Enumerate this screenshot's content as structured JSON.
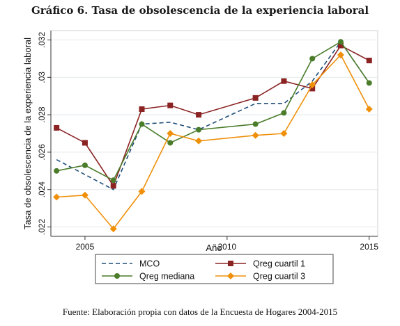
{
  "title": "Gráfico 6. Tasa de obsolescencia de la experiencia laboral",
  "source": "Fuente: Elaboración propia con datos de la Encuesta de Hogares 2004-2015",
  "chart_data": {
    "type": "line",
    "xlabel": "Año",
    "ylabel": "Tasa de obsolescencia de la experiencia laboral",
    "xlim": [
      2003.8,
      2015.3
    ],
    "ylim": [
      0.0215,
      0.0325
    ],
    "x_ticks": [
      2005,
      2010,
      2015
    ],
    "x_tick_labels": [
      "2005",
      "2010",
      "2015"
    ],
    "y_ticks": [
      0.022,
      0.024,
      0.026,
      0.028,
      0.03,
      0.032
    ],
    "y_tick_labels": [
      ".022",
      ".024",
      ".026",
      ".028",
      ".03",
      ".032"
    ],
    "grid": true,
    "legend_position": "bottom",
    "series": [
      {
        "name": "MCO",
        "color": "#1f4e79",
        "style": "dashed",
        "marker": "none",
        "x": [
          2004,
          2005,
          2006,
          2007,
          2008,
          2009,
          2010,
          2011,
          2012,
          2013,
          2014,
          2015
        ],
        "y": [
          0.0256,
          0.0248,
          0.024,
          0.0275,
          0.0276,
          0.0272,
          0.0279,
          0.0286,
          0.0286,
          0.0298,
          0.0319,
          0.0297
        ]
      },
      {
        "name": "Qreg cuartil 1",
        "color": "#8b2323",
        "style": "solid",
        "marker": "square",
        "x": [
          2004,
          2005,
          2006,
          2007,
          2008,
          2009,
          2011,
          2012,
          2013,
          2014,
          2015
        ],
        "y": [
          0.0273,
          0.0265,
          0.0242,
          0.0283,
          0.0285,
          0.028,
          0.0289,
          0.0298,
          0.0294,
          0.0317,
          0.0309
        ]
      },
      {
        "name": "Qreg mediana",
        "color": "#4a7c2a",
        "style": "solid",
        "marker": "circle",
        "x": [
          2004,
          2005,
          2006,
          2007,
          2008,
          2009,
          2011,
          2012,
          2013,
          2014,
          2015
        ],
        "y": [
          0.025,
          0.0253,
          0.0245,
          0.0275,
          0.0265,
          0.0272,
          0.0275,
          0.0281,
          0.031,
          0.0319,
          0.0297
        ]
      },
      {
        "name": "Qreg cuartil 3",
        "color": "#f0900a",
        "style": "solid",
        "marker": "diamond",
        "x": [
          2004,
          2005,
          2006,
          2007,
          2008,
          2009,
          2011,
          2012,
          2013,
          2014,
          2015
        ],
        "y": [
          0.0236,
          0.0237,
          0.0219,
          0.0239,
          0.027,
          0.0266,
          0.0269,
          0.027,
          0.0296,
          0.0312,
          0.0283
        ]
      }
    ]
  }
}
